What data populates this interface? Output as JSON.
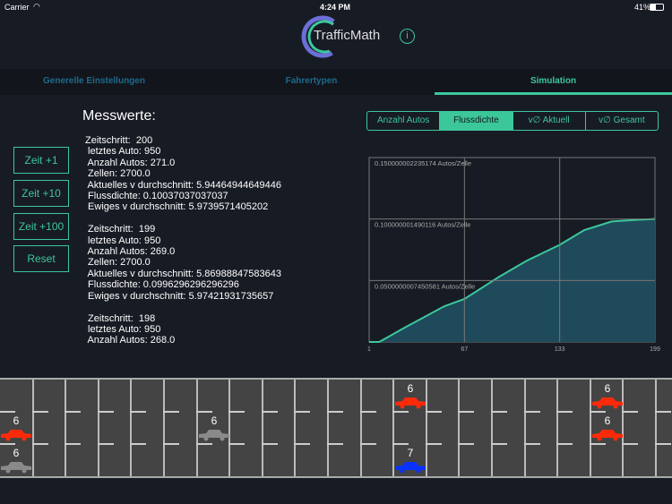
{
  "status_bar": {
    "carrier": "Carrier",
    "time": "4:24 PM",
    "battery": "41%"
  },
  "header": {
    "logo_text": "TrafficMath",
    "info_icon": "info-circle-icon"
  },
  "tabs": [
    {
      "label": "Generelle Einstellungen",
      "active": false
    },
    {
      "label": "Fahrertypen",
      "active": false
    },
    {
      "label": "Simulation",
      "active": true
    }
  ],
  "controls": {
    "title": "Messwerte:",
    "buttons": [
      "Zeit +1",
      "Zeit +10",
      "Zeit +100",
      "Reset"
    ]
  },
  "log_text": "Zeitschritt:  200\n letztes Auto: 950\n Anzahl Autos: 271.0\n Zellen: 2700.0\n Aktuelles v durchschnitt: 5.94464944649446\n Flussdichte: 0.10037037037037\n Ewiges v durchschnitt: 5.9739571405202\n\n Zeitschritt:  199\n letztes Auto: 950\n Anzahl Autos: 269.0\n Zellen: 2700.0\n Aktuelles v durchschnitt: 5.86988847583643\n Flussdichte: 0.0996296296296296\n Ewiges v durchschnitt: 5.97421931735657\n\n Zeitschritt:  198\n letztes Auto: 950\n Anzahl Autos: 268.0",
  "chart_tabs": [
    {
      "label": "Anzahl Autos",
      "active": false
    },
    {
      "label": "Flussdichte",
      "active": true
    },
    {
      "label": "v∅ Aktuell",
      "active": false
    },
    {
      "label": "v∅ Gesamt",
      "active": false
    }
  ],
  "colors": {
    "accent": "#3cc79b",
    "fill": "#1f4a5c",
    "car_red": "#ff2a0a",
    "car_gray": "#8a8a8a",
    "car_blue": "#0a32ff"
  },
  "chart_data": {
    "type": "area",
    "xlim": [
      1,
      199
    ],
    "ylim": [
      0,
      0.150000002235174
    ],
    "x_ticks": [
      "1",
      "67",
      "133",
      "199"
    ],
    "y_ticks": [
      "0.0500000007450581 Autos/Zelle",
      "0.100000001490116 Autos/Zelle",
      "0.150000002235174 Autos/Zelle"
    ],
    "y_tick_values": [
      0.0500000007450581,
      0.100000001490116,
      0.150000002235174
    ],
    "grid": true,
    "x": [
      1,
      8,
      25,
      53,
      67,
      91,
      110,
      133,
      150,
      169,
      186,
      199
    ],
    "y": [
      0,
      0,
      0.0113,
      0.029,
      0.035,
      0.053,
      0.066,
      0.079,
      0.091,
      0.098,
      0.0993,
      0.1
    ]
  },
  "road": {
    "cars": [
      {
        "lane": 1,
        "cell": 0,
        "speed": "6",
        "color": "red"
      },
      {
        "lane": 2,
        "cell": 0,
        "speed": "6",
        "color": "gray"
      },
      {
        "lane": 1,
        "cell": 6,
        "speed": "6",
        "color": "gray"
      },
      {
        "lane": 0,
        "cell": 12,
        "speed": "6",
        "color": "red"
      },
      {
        "lane": 2,
        "cell": 12,
        "speed": "7",
        "color": "blue"
      },
      {
        "lane": 0,
        "cell": 18,
        "speed": "6",
        "color": "red"
      },
      {
        "lane": 1,
        "cell": 18,
        "speed": "6",
        "color": "red"
      }
    ]
  }
}
